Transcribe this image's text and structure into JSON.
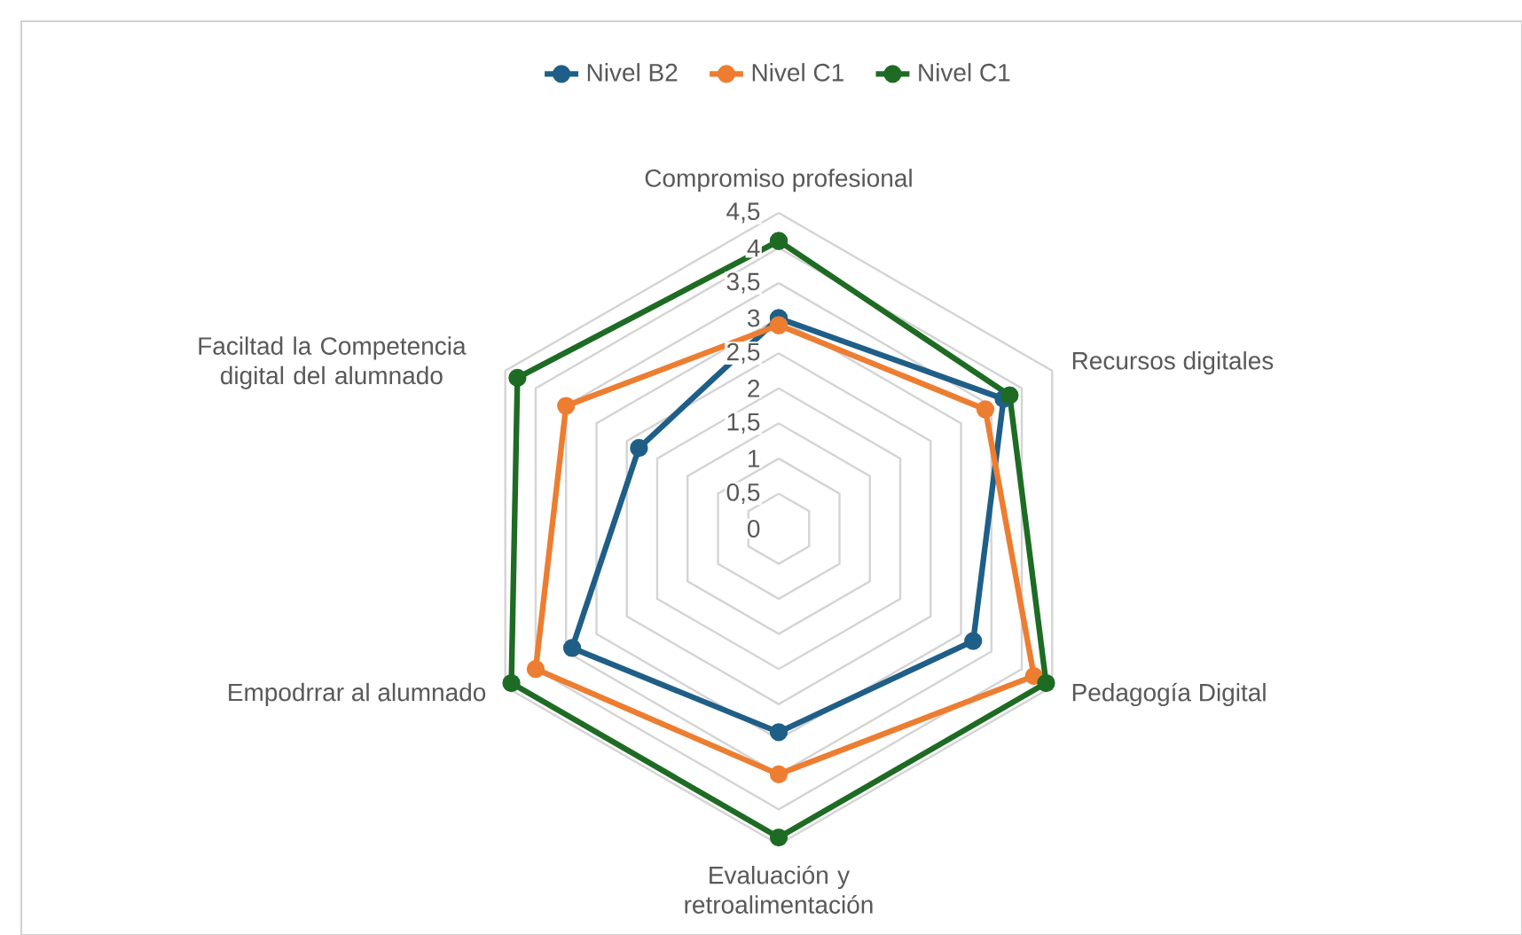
{
  "chart_data": {
    "type": "radar",
    "categories": [
      "Compromiso profesional",
      "Recursos digitales",
      "Pedagogía Digital",
      "Evaluación y retroalimentación",
      "Empodrrar al alumnado",
      "Faciltad la Competencia digital del alumnado"
    ],
    "series": [
      {
        "name": "Nivel B2",
        "color": "#1f5f87",
        "values": [
          3.0,
          3.7,
          3.2,
          2.9,
          3.4,
          2.3
        ]
      },
      {
        "name": "Nivel C1",
        "color": "#ed7d31",
        "values": [
          2.9,
          3.4,
          4.2,
          3.5,
          4.0,
          3.5
        ]
      },
      {
        "name": "Nivel C1",
        "color": "#1e6b24",
        "values": [
          4.1,
          3.8,
          4.4,
          4.4,
          4.4,
          4.3
        ]
      }
    ],
    "ylim": [
      0,
      4.5
    ],
    "yticks": [
      {
        "value": 0,
        "label": "0"
      },
      {
        "value": 0.5,
        "label": "0,5"
      },
      1,
      {
        "value": 1.5,
        "label": "1,5"
      },
      2,
      {
        "value": 2.5,
        "label": "2,5"
      },
      3,
      {
        "value": 3.5,
        "label": "3,5"
      },
      4,
      {
        "value": 4.5,
        "label": "4,5"
      }
    ],
    "grid": true,
    "legend": "top",
    "marker": "circle",
    "line_style": "solid"
  }
}
